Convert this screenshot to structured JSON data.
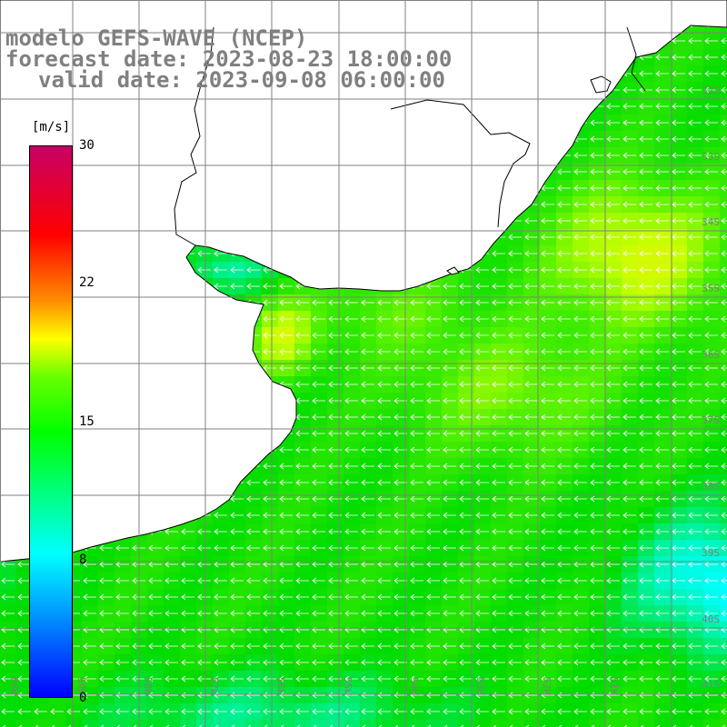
{
  "title": {
    "model": "modelo GEFS-WAVE (NCEP)",
    "forecast": "forecast date: 2023-08-23 18:00:00",
    "valid": "valid date: 2023-09-08 06:00:00"
  },
  "colorbar": {
    "unit": "[m/s]",
    "ticks": [
      "30",
      "22",
      "15",
      "8",
      "0"
    ],
    "min": 0,
    "max": 30,
    "colors": [
      "#0000ff",
      "#00ffff",
      "#00ff00",
      "#ffff00",
      "#ff0000",
      "#c80064"
    ]
  },
  "map": {
    "lat_labels": [
      "32S",
      "33S",
      "34S",
      "35S",
      "36S",
      "37S",
      "38S",
      "39S",
      "40S",
      "41S"
    ],
    "lon_labels": [
      "60W",
      "59W",
      "58W",
      "57W",
      "56W",
      "55W",
      "54W",
      "53W",
      "52W",
      "51W"
    ],
    "land_color": "#ffffff",
    "grid_color": "#808080",
    "arrow_color": "#ffffff",
    "wind_direction": "from east"
  }
}
